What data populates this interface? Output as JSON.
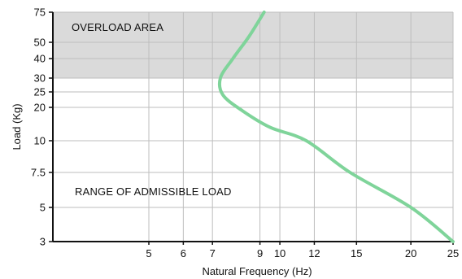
{
  "chart_data": {
    "type": "line",
    "xlabel": "Natural Frequency (Hz)",
    "ylabel": "Load (Kg)",
    "xlim": [
      3.8,
      25
    ],
    "ylim": [
      3,
      75
    ],
    "x_ticks": [
      5,
      6,
      7,
      9,
      10,
      12,
      15,
      20,
      25
    ],
    "x_tick_labels": [
      "5",
      "6",
      "7",
      "9",
      "10",
      "12",
      "15",
      "20",
      "25"
    ],
    "y_ticks": [
      3,
      5,
      7.5,
      10,
      20,
      25,
      30,
      40,
      50,
      75
    ],
    "y_tick_labels": [
      "3",
      "5",
      "7.5",
      "10",
      "20",
      "25",
      "30",
      "40",
      "50",
      "75"
    ],
    "grid": true,
    "overload_region": {
      "from_load": 30,
      "to_load": 75,
      "color": "#dadada"
    },
    "annotations": [
      {
        "text": "OVERLOAD AREA",
        "region": "overload"
      },
      {
        "text": "RANGE OF ADMISSIBLE LOAD",
        "region": "admissible"
      }
    ],
    "series": [
      {
        "color": "#7fd49a",
        "points": [
          {
            "x": 9.2,
            "y": 75
          },
          {
            "x": 8.5,
            "y": 55
          },
          {
            "x": 7.8,
            "y": 40
          },
          {
            "x": 7.3,
            "y": 30
          },
          {
            "x": 7.4,
            "y": 24
          },
          {
            "x": 8.2,
            "y": 19
          },
          {
            "x": 9.5,
            "y": 14
          },
          {
            "x": 11.5,
            "y": 10
          },
          {
            "x": 14.5,
            "y": 7.5
          },
          {
            "x": 20,
            "y": 5
          },
          {
            "x": 25,
            "y": 3
          }
        ]
      }
    ]
  }
}
